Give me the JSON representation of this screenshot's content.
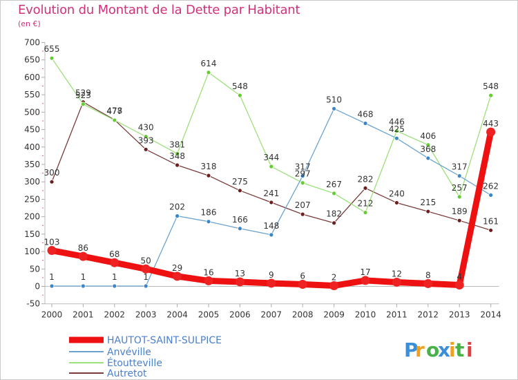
{
  "title": "Evolution du Montant de la Dette par Habitant",
  "subtitle": "(en €)",
  "logo": {
    "text": "Proxiti",
    "colors": [
      "#3a8fd6",
      "#f0a020",
      "#4ab04a",
      "#3a8fd6",
      "#f0a020",
      "#4ab04a",
      "#e04040"
    ]
  },
  "chart_data": {
    "type": "line",
    "title": "Evolution du Montant de la Dette par Habitant",
    "subtitle": "(en €)",
    "xlabel": "",
    "ylabel": "",
    "ylim": [
      -50,
      700
    ],
    "yticks": [
      -50,
      0,
      50,
      100,
      150,
      200,
      250,
      300,
      350,
      400,
      450,
      500,
      550,
      600,
      650,
      700
    ],
    "grid": false,
    "legend_position": "bottom-left",
    "x": [
      "2000",
      "2001",
      "2002",
      "2003",
      "2004",
      "2005",
      "2006",
      "2007",
      "2008",
      "2009",
      "2010",
      "2011",
      "2012",
      "2013",
      "2014"
    ],
    "series": [
      {
        "name": "HAUTOT-SAINT-SULPICE",
        "color": "#ee1111",
        "marker_color": "#ee2222",
        "width": "thick",
        "values": [
          103,
          86,
          68,
          50,
          29,
          16,
          13,
          9,
          6,
          2,
          17,
          12,
          8,
          4,
          443
        ]
      },
      {
        "name": "Anvéville",
        "color": "#6ba3cf",
        "marker_color": "#3b86c6",
        "width": "thin",
        "values": [
          1,
          1,
          1,
          1,
          202,
          186,
          166,
          148,
          317,
          510,
          468,
          425,
          368,
          317,
          262
        ]
      },
      {
        "name": "Étoutteville",
        "color": "#9be07a",
        "marker_color": "#66cc33",
        "width": "thin",
        "values": [
          655,
          523,
          477,
          430,
          381,
          614,
          548,
          344,
          297,
          267,
          212,
          446,
          406,
          257,
          548
        ]
      },
      {
        "name": "Autretot",
        "color": "#7a3a3a",
        "marker_color": "#6b1f1f",
        "width": "thin",
        "values": [
          300,
          529,
          478,
          393,
          348,
          318,
          275,
          241,
          207,
          182,
          282,
          240,
          215,
          189,
          161
        ]
      }
    ]
  }
}
